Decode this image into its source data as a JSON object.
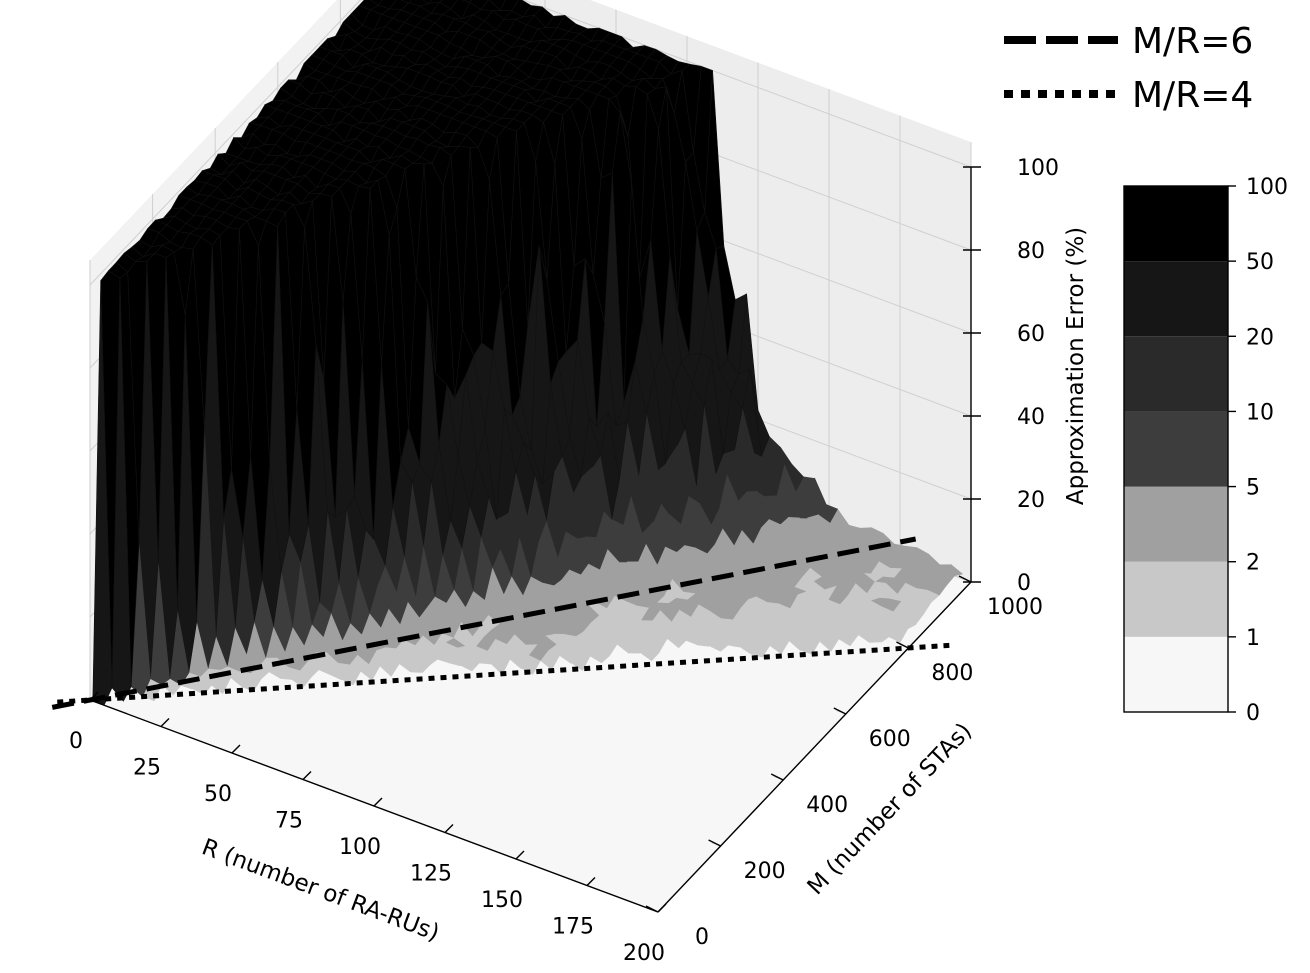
{
  "chart_data": {
    "type": "surface3d",
    "title": "",
    "x_axis": {
      "label": "R (number of RA-RUs)",
      "ticks": [
        0,
        25,
        50,
        75,
        100,
        125,
        150,
        175,
        200
      ],
      "range": [
        0,
        200
      ]
    },
    "y_axis": {
      "label": "M (number of STAs)",
      "ticks": [
        0,
        200,
        400,
        600,
        800,
        1000
      ],
      "range": [
        0,
        1000
      ]
    },
    "z_axis": {
      "label": "Approximation Error (%)",
      "ticks": [
        0,
        20,
        40,
        60,
        80,
        100
      ],
      "range": [
        0,
        100
      ]
    },
    "colorbar": {
      "ticks": [
        0,
        1,
        2,
        5,
        10,
        20,
        50,
        100
      ],
      "colors": [
        "#f7f7f7",
        "#c8c8c8",
        "#a0a0a0",
        "#3d3d3d",
        "#2a2a2a",
        "#161616",
        "#000000"
      ]
    },
    "legend": {
      "placement": "top-right",
      "entries": [
        {
          "label": "M/R=6",
          "style": "dashed",
          "ratio": 6
        },
        {
          "label": "M/R=4",
          "style": "dotted",
          "ratio": 4
        }
      ]
    },
    "grid": true,
    "surface_description": "Error near 100% for M/R well above the lines, dropping to near 0 below M/R=4"
  }
}
